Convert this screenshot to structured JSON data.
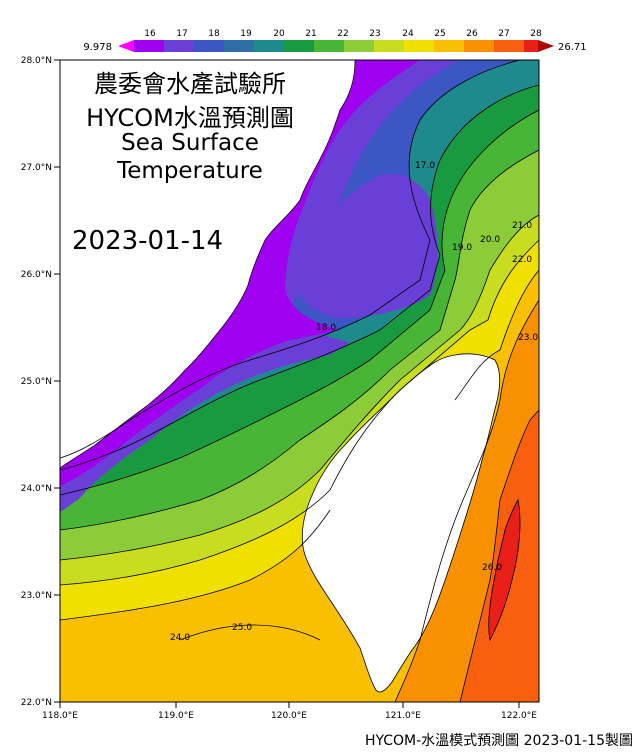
{
  "map": {
    "org_title": "農委會水產試驗所",
    "product_title": "HYCOM水溫預測圖",
    "variable_line1": "Sea Surface",
    "variable_line2": "Temperature",
    "forecast_date": "2023-01-14",
    "footer": "HYCOM-水溫模式預測圖 2023-01-15製圖",
    "lat_labels": [
      "28.0°N",
      "27.0°N",
      "26.0°N",
      "25.0°N",
      "24.0°N",
      "23.0°N",
      "22.0°N"
    ],
    "lon_labels": [
      "118.0°E",
      "119.0°E",
      "120.0°E",
      "121.0°E",
      "122.0°E"
    ],
    "lat_range": [
      22.0,
      28.0
    ],
    "lon_range": [
      118.0,
      123.0
    ]
  },
  "colorbar": {
    "min_label": "9.978",
    "max_label": "26.71",
    "levels": [
      "16",
      "17",
      "18",
      "19",
      "20",
      "21",
      "22",
      "23",
      "24",
      "25",
      "26",
      "27",
      "28"
    ],
    "colors": [
      "#a000f0",
      "#6a3fd8",
      "#3c56c4",
      "#2f6fa8",
      "#1e8a8c",
      "#1a9a40",
      "#49b536",
      "#8ccc38",
      "#c8dc20",
      "#f0e000",
      "#f8c000",
      "#f89000",
      "#f86010",
      "#e82018",
      "#b00000"
    ]
  },
  "contour_labels": [
    "17.0",
    "18.0",
    "19.0",
    "20.0",
    "21.0",
    "22.0",
    "23.0",
    "24.0",
    "25.0",
    "26.0"
  ]
}
